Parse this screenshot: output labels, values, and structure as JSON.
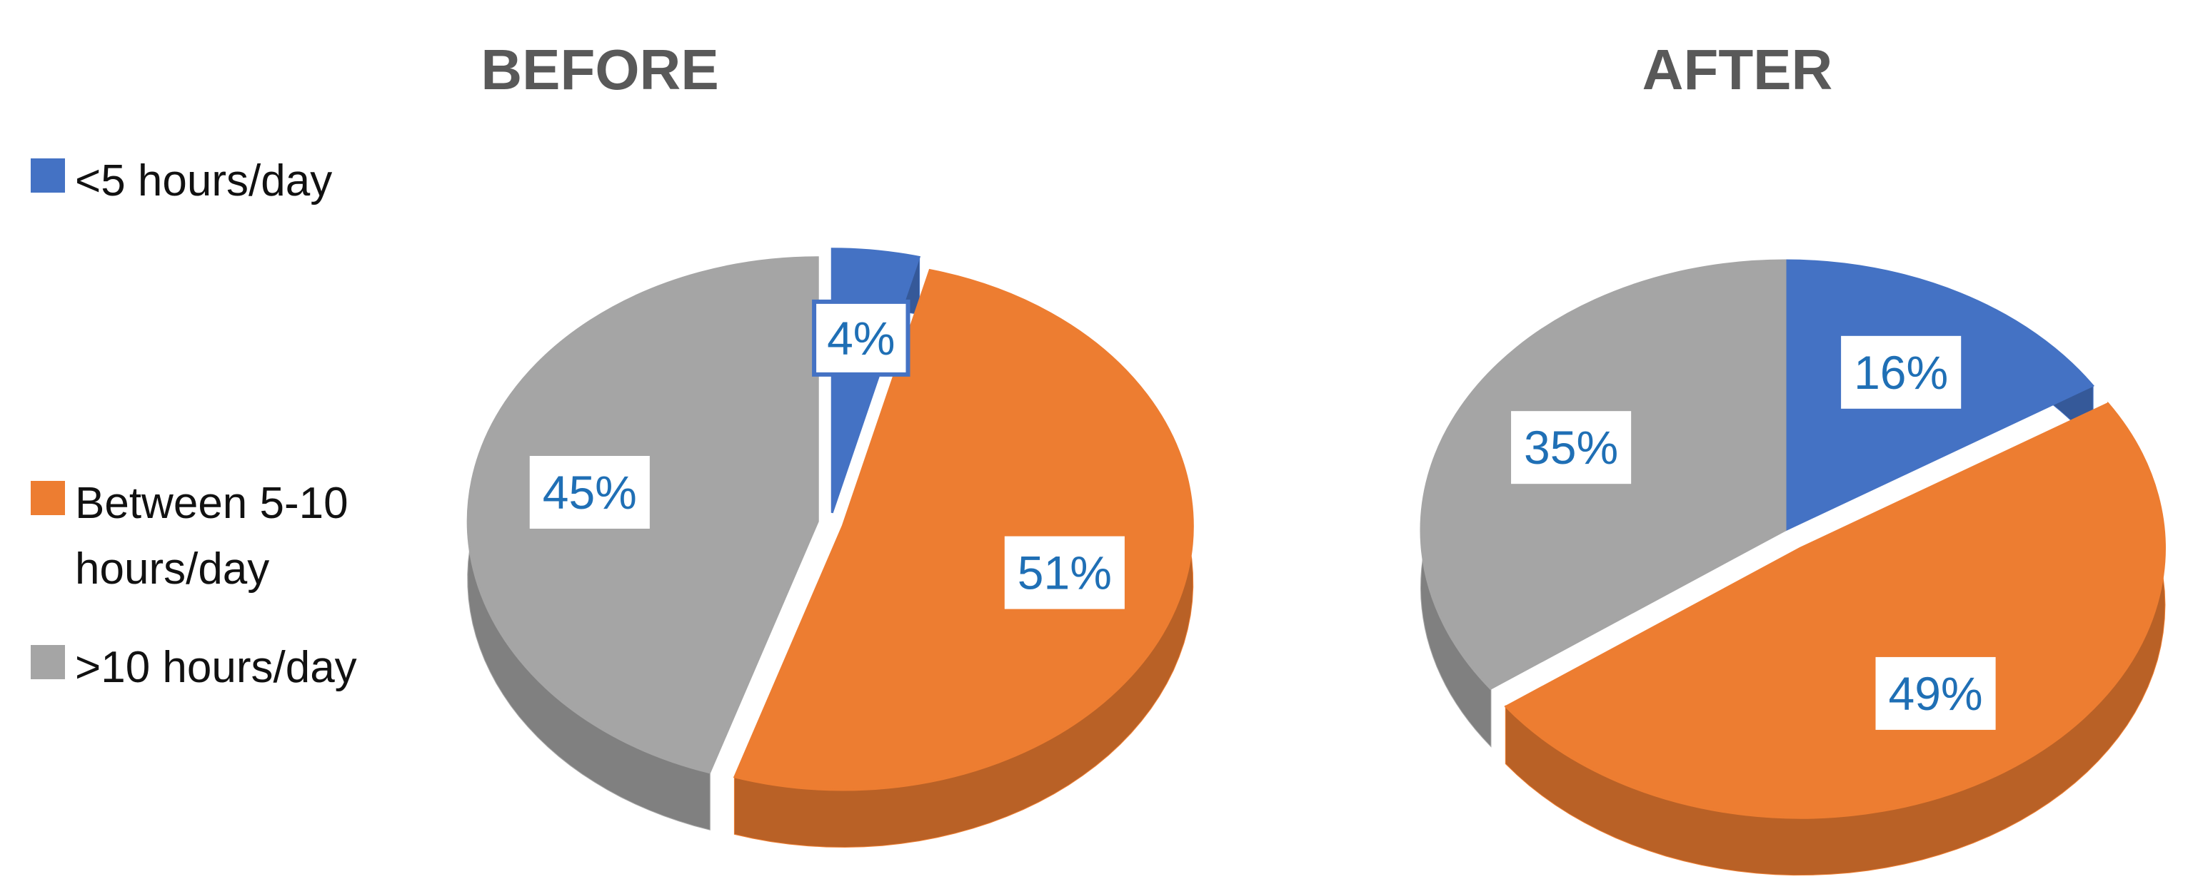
{
  "legend": {
    "categories": [
      "<5 hours/day",
      "Between 5-10 hours/day",
      ">10 hours/day"
    ],
    "colors": [
      "#4472c4",
      "#ed7d31",
      "#a5a5a5"
    ]
  },
  "chart_data": [
    {
      "type": "pie",
      "title": "BEFORE",
      "values": [
        4,
        51,
        45
      ],
      "value_labels": [
        "4%",
        "51%",
        "45%"
      ]
    },
    {
      "type": "pie",
      "title": "AFTER",
      "values": [
        16,
        49,
        35
      ],
      "value_labels": [
        "16%",
        "49%",
        "35%"
      ]
    }
  ]
}
